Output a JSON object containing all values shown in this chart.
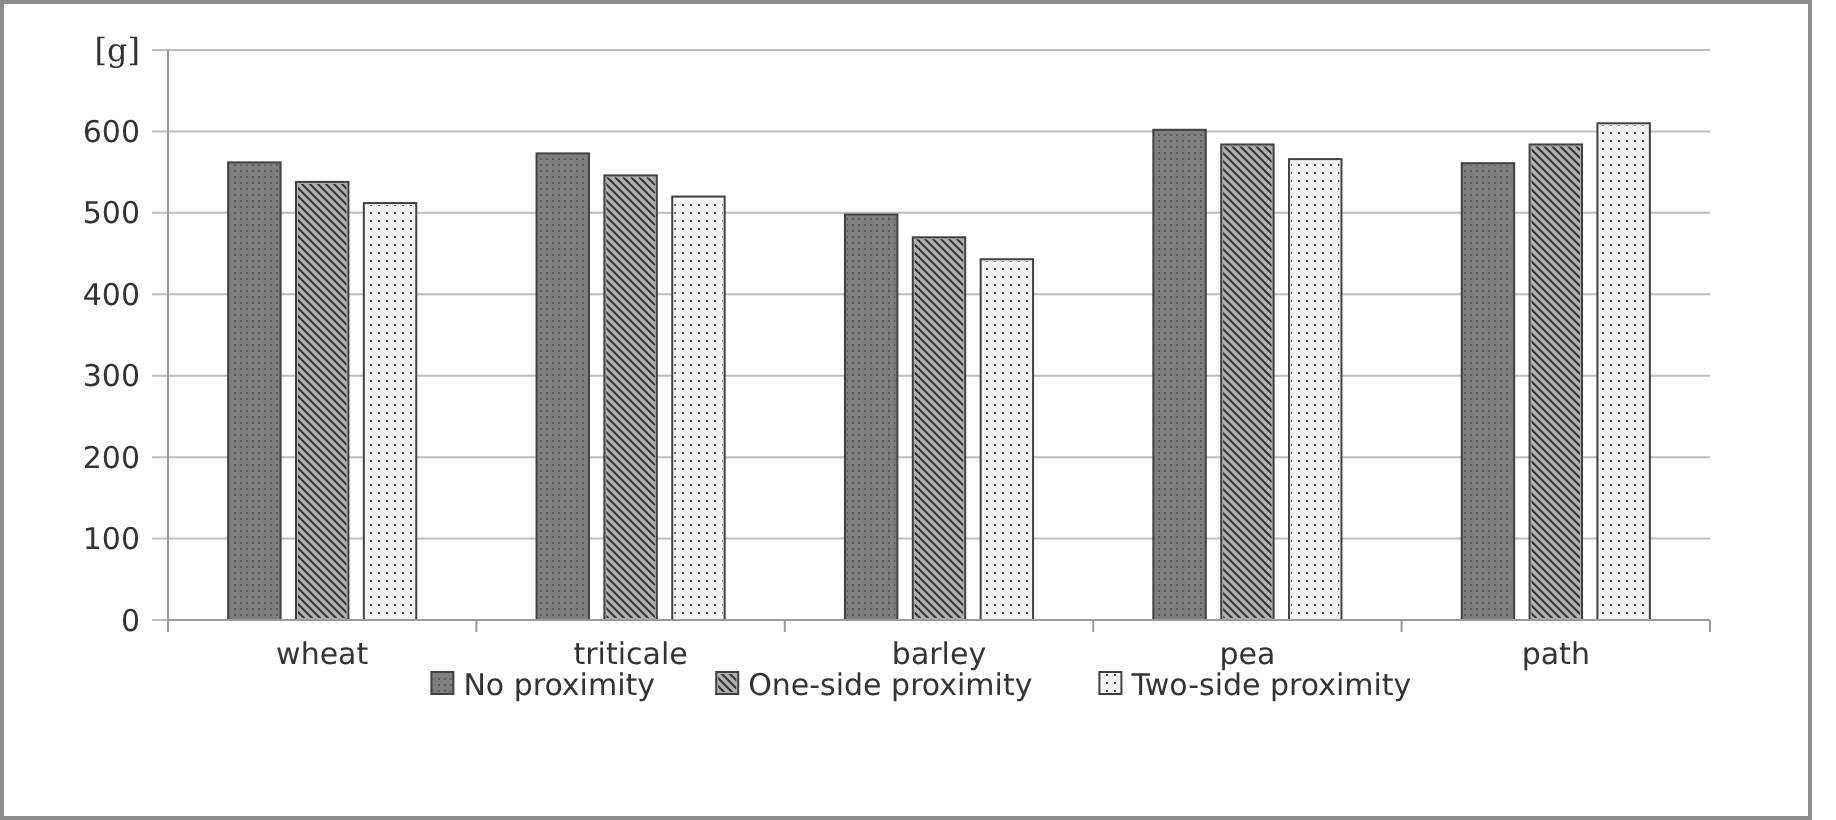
{
  "chart_data": {
    "type": "bar",
    "ylabel": "[g]",
    "categories": [
      "wheat",
      "triticale",
      "barley",
      "pea",
      "path"
    ],
    "series": [
      {
        "name": "No proximity",
        "color": "#7f7f7f",
        "values": [
          562,
          573,
          498,
          602,
          561
        ]
      },
      {
        "name": "One-side proximity",
        "color": "#b0b0b0",
        "values": [
          538,
          546,
          470,
          584,
          584
        ]
      },
      {
        "name": "Two-side proximity",
        "color": "#f4f4f4",
        "values": [
          512,
          520,
          443,
          566,
          610
        ]
      }
    ],
    "ylim": [
      0,
      700
    ],
    "yticks": [
      0,
      100,
      200,
      300,
      400,
      500,
      600,
      {
        "value": 700,
        "label": null
      }
    ],
    "grid": "y",
    "legend": "bottom"
  }
}
